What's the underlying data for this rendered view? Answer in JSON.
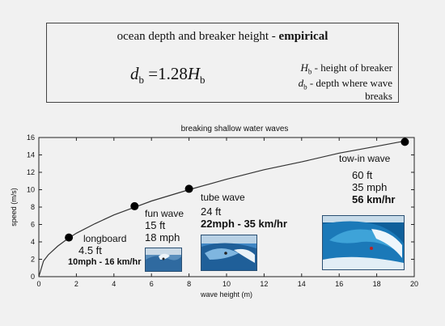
{
  "formula": {
    "title_plain": "ocean depth and breaker height - ",
    "title_bold": "empirical",
    "eq_lhs_var": "d",
    "eq_lhs_sub": "b",
    "eq_mid": " =1.28",
    "eq_rhs_var": "H",
    "eq_rhs_sub": "b",
    "legend": [
      {
        "var": "H",
        "sub": "b",
        "text": " - height of breaker"
      },
      {
        "var": "d",
        "sub": "b",
        "text": " - depth where wave"
      },
      {
        "var": "",
        "sub": "",
        "text": "breaks"
      }
    ]
  },
  "chart_data": {
    "type": "line",
    "title": "breaking shallow water waves",
    "xlabel": "wave height (m)",
    "ylabel": "speed (m/s)",
    "xlim": [
      0,
      20
    ],
    "ylim": [
      0,
      16
    ],
    "xticks": [
      0,
      2,
      4,
      6,
      8,
      10,
      12,
      14,
      16,
      18,
      20
    ],
    "yticks": [
      0,
      2,
      4,
      6,
      8,
      10,
      12,
      14,
      16
    ],
    "curve": {
      "x": [
        0,
        0.25,
        0.5,
        1,
        1.5,
        2,
        3,
        4,
        5,
        6,
        8,
        10,
        12,
        14,
        16,
        18,
        19.5
      ],
      "y": [
        0,
        1.8,
        2.5,
        3.5,
        4.3,
        5.0,
        6.1,
        7.1,
        7.9,
        8.7,
        10.0,
        11.2,
        12.3,
        13.2,
        14.2,
        15.0,
        15.6
      ]
    },
    "points": [
      {
        "x": 1.6,
        "y": 4.5
      },
      {
        "x": 5.1,
        "y": 8.1
      },
      {
        "x": 8.0,
        "y": 10.1
      },
      {
        "x": 19.5,
        "y": 15.5
      }
    ],
    "annotations": [
      {
        "id": "longboard",
        "name": "longboard",
        "lines": [
          "4.5 ft",
          "10mph - 16 km/hr"
        ]
      },
      {
        "id": "fun",
        "name": "fun wave",
        "lines": [
          "15 ft",
          "18 mph"
        ]
      },
      {
        "id": "tube",
        "name": "tube wave",
        "lines": [
          "24 ft",
          "22mph - 35 km/hr"
        ]
      },
      {
        "id": "towin",
        "name": "tow-in wave",
        "lines": [
          "60 ft",
          "35 mph",
          "56 km/hr"
        ]
      }
    ],
    "colors": {
      "line": "#333333",
      "point": "#000000",
      "photo_water": "#2e6fa8",
      "photo_foam": "#e8f0f6"
    }
  }
}
